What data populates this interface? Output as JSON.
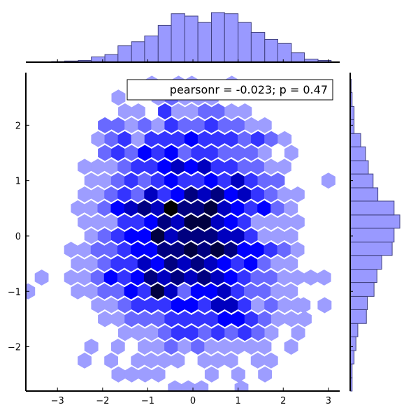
{
  "chart_data": {
    "type": "hexbin",
    "annotation": "pearsonr = -0.023; p = 0.47",
    "xlim": [
      -3.7,
      3.25
    ],
    "ylim": [
      -2.8,
      2.95
    ],
    "xticks": [
      -3,
      -2,
      -1,
      0,
      1,
      2,
      3
    ],
    "yticks": [
      -2,
      -1,
      0,
      1,
      2
    ],
    "xtick_labels": [
      "−3",
      "−2",
      "−1",
      "0",
      "1",
      "2",
      "3"
    ],
    "ytick_labels": [
      "−2",
      "−1",
      "0",
      "1",
      "2"
    ],
    "colormap": [
      "#ffffff",
      "#0000ff",
      "#000000"
    ],
    "hex_color": "#0000ff",
    "hist_color": "#9999ff",
    "hist_edge_color": "#404080",
    "x_marginal_hist": {
      "bin_edges": [
        -3.43,
        -3.13,
        -2.84,
        -2.54,
        -2.25,
        -1.95,
        -1.66,
        -1.36,
        -1.07,
        -0.77,
        -0.48,
        -0.18,
        0.11,
        0.41,
        0.7,
        1.0,
        1.29,
        1.59,
        1.88,
        2.18,
        2.47,
        2.77,
        3.06
      ],
      "counts": [
        0,
        1,
        2,
        3,
        9,
        13,
        28,
        35,
        45,
        63,
        83,
        79,
        68,
        85,
        83,
        68,
        51,
        39,
        32,
        16,
        5,
        3
      ]
    },
    "y_marginal_hist": {
      "bin_edges": [
        -2.8,
        -2.56,
        -2.31,
        -2.07,
        -1.82,
        -1.58,
        -1.33,
        -1.09,
        -0.84,
        -0.6,
        -0.35,
        -0.11,
        0.14,
        0.38,
        0.63,
        0.87,
        1.12,
        1.36,
        1.61,
        1.85,
        2.1,
        2.34,
        2.59,
        2.83
      ],
      "counts": [
        2,
        2,
        4,
        6,
        8,
        17,
        18,
        25,
        28,
        33,
        44,
        46,
        52,
        46,
        29,
        24,
        19,
        16,
        11,
        4,
        4,
        2,
        1
      ]
    },
    "hexbin": {
      "cell_width": 0.295,
      "rows": [
        {
          "y": 2.75,
          "x0": -1.5,
          "counts": [
            0,
            0,
            1,
            0,
            1,
            1,
            0,
            0,
            1,
            0,
            0,
            0,
            0
          ]
        },
        {
          "y": 2.5,
          "x0": -1.65,
          "counts": [
            1,
            0,
            0,
            1,
            2,
            1,
            1,
            1,
            0
          ]
        },
        {
          "y": 2.25,
          "x0": -1.8,
          "counts": [
            0,
            1,
            1,
            0,
            3,
            1,
            1,
            2,
            2,
            1,
            1
          ]
        },
        {
          "y": 2.0,
          "x0": -1.95,
          "counts": [
            2,
            2,
            1,
            2,
            1,
            3,
            2,
            2,
            3,
            2,
            2,
            1,
            1
          ]
        },
        {
          "y": 1.75,
          "x0": -2.1,
          "counts": [
            1,
            2,
            3,
            1,
            3,
            3,
            3,
            4,
            3,
            3,
            3,
            2,
            3,
            2,
            1
          ]
        },
        {
          "y": 1.5,
          "x0": -1.95,
          "counts": [
            2,
            3,
            2,
            4,
            3,
            4,
            2,
            3,
            3,
            2,
            2,
            2,
            1,
            0,
            1
          ]
        },
        {
          "y": 1.25,
          "x0": -2.4,
          "counts": [
            1,
            1,
            1,
            2,
            3,
            3,
            4,
            5,
            4,
            5,
            3,
            3,
            2,
            2,
            1,
            1
          ]
        },
        {
          "y": 1.0,
          "x0": -2.25,
          "counts": [
            1,
            1,
            2,
            3,
            2,
            3,
            4,
            3,
            3,
            4,
            3,
            5,
            3,
            2,
            2,
            0,
            0,
            0,
            0,
            1
          ]
        },
        {
          "y": 0.75,
          "x0": -2.4,
          "counts": [
            1,
            1,
            2,
            3,
            2,
            5,
            3,
            4,
            6,
            5,
            6,
            4,
            5,
            3,
            2,
            1,
            1
          ]
        },
        {
          "y": 0.5,
          "x0": -2.55,
          "counts": [
            1,
            1,
            2,
            4,
            5,
            6,
            5,
            8,
            6,
            6,
            7,
            5,
            4,
            3,
            4,
            2,
            1
          ]
        },
        {
          "y": 0.25,
          "x0": -2.4,
          "counts": [
            1,
            1,
            1,
            3,
            3,
            4,
            6,
            5,
            7,
            7,
            5,
            4,
            3,
            1,
            1,
            1,
            1
          ]
        },
        {
          "y": 0.0,
          "x0": -2.25,
          "counts": [
            1,
            2,
            3,
            4,
            4,
            7,
            5,
            6,
            6,
            6,
            5,
            5,
            3,
            1,
            1,
            1
          ]
        },
        {
          "y": -0.25,
          "x0": -2.7,
          "counts": [
            1,
            1,
            2,
            2,
            3,
            4,
            4,
            6,
            6,
            7,
            6,
            7,
            6,
            4,
            4,
            3,
            2,
            1
          ]
        },
        {
          "y": -0.5,
          "x0": -2.55,
          "counts": [
            1,
            1,
            2,
            3,
            3,
            5,
            4,
            6,
            5,
            6,
            5,
            4,
            3,
            4,
            2,
            1,
            1
          ]
        },
        {
          "y": -0.75,
          "x0": -2.7,
          "counts": [
            1,
            1,
            2,
            4,
            3,
            4,
            6,
            5,
            6,
            5,
            6,
            5,
            4,
            3,
            2,
            2,
            1,
            1,
            1,
            1
          ]
        },
        {
          "y": -1.0,
          "x0": -2.55,
          "counts": [
            1,
            1,
            2,
            2,
            4,
            3,
            7,
            5,
            2,
            4,
            4,
            5,
            3,
            2,
            2,
            1,
            1
          ]
        },
        {
          "y": -1.25,
          "x0": -2.1,
          "counts": [
            1,
            1,
            2,
            3,
            3,
            3,
            4,
            4,
            3,
            5,
            5,
            3,
            1,
            2,
            1,
            1,
            0,
            1
          ]
        },
        {
          "y": -1.5,
          "x0": -1.95,
          "counts": [
            1,
            1,
            2,
            2,
            2,
            3,
            3,
            3,
            3,
            4,
            4,
            3,
            2,
            1,
            1,
            1
          ]
        },
        {
          "y": -1.75,
          "x0": -1.8,
          "counts": [
            0,
            1,
            1,
            1,
            2,
            3,
            3,
            2,
            3,
            2,
            3,
            2,
            1,
            0,
            1
          ]
        },
        {
          "y": -2.0,
          "x0": -2.25,
          "counts": [
            1,
            0,
            1,
            0,
            1,
            1,
            2,
            1,
            2,
            1,
            1,
            1,
            1,
            1,
            0,
            1
          ]
        },
        {
          "y": -2.25,
          "x0": -2.4,
          "counts": [
            1,
            0,
            1,
            0,
            1,
            1,
            1,
            1,
            0,
            1,
            1,
            1,
            0,
            1,
            1
          ]
        },
        {
          "y": -2.5,
          "x0": -1.65,
          "counts": [
            1,
            1,
            1,
            1,
            0,
            0,
            0,
            1,
            0,
            1,
            0,
            1
          ]
        },
        {
          "y": -2.75,
          "x0": -0.4,
          "counts": [
            1,
            1,
            1,
            0,
            0,
            1
          ]
        }
      ],
      "extra_cells": [
        {
          "x": -3.65,
          "y": -1.0,
          "count": 1
        },
        {
          "x": -3.35,
          "y": -0.75,
          "count": 1
        },
        {
          "x": 3.0,
          "y": 1.0,
          "count": 1
        },
        {
          "x": 2.45,
          "y": -1.25,
          "count": 1
        }
      ]
    }
  }
}
